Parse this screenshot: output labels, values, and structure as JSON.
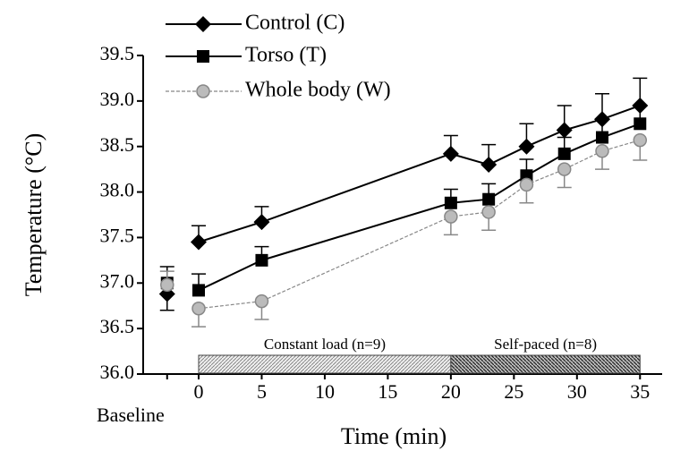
{
  "chart_data": {
    "type": "line",
    "xlabel": "Time (min)",
    "ylabel": "Temperature (°C)",
    "x": [
      0,
      5,
      20,
      23,
      26,
      29,
      32,
      35
    ],
    "baseline_tick": 0,
    "series": [
      {
        "name": "Control (C)",
        "color": "#000000",
        "marker": "diamond",
        "dash": false,
        "error_direction": "up",
        "baseline": 36.88,
        "baseline_error": 0.18,
        "values": [
          37.45,
          37.67,
          38.42,
          38.3,
          38.5,
          38.68,
          38.8,
          38.95
        ],
        "errors": [
          0.18,
          0.17,
          0.2,
          0.22,
          0.25,
          0.27,
          0.28,
          0.3
        ]
      },
      {
        "name": "Torso (T)",
        "color": "#000000",
        "marker": "square",
        "dash": false,
        "error_direction": "up",
        "baseline": 37.0,
        "baseline_error": 0.18,
        "values": [
          36.92,
          37.25,
          37.88,
          37.92,
          38.18,
          38.42,
          38.6,
          38.75
        ],
        "errors": [
          0.18,
          0.15,
          0.15,
          0.17,
          0.18,
          0.18,
          0.2,
          0.2
        ]
      },
      {
        "name": "Whole body (W)",
        "color": "#888888",
        "marker": "circle",
        "dash": true,
        "error_direction": "down",
        "baseline": 36.98,
        "baseline_error": 0.15,
        "values": [
          36.72,
          36.8,
          37.73,
          37.78,
          38.08,
          38.25,
          38.45,
          38.57
        ],
        "errors": [
          0.2,
          0.2,
          0.2,
          0.2,
          0.2,
          0.2,
          0.2,
          0.22
        ]
      }
    ],
    "phases": [
      {
        "label": "Constant load (n=9)",
        "start": 0,
        "end": 20,
        "pattern": "light"
      },
      {
        "label": "Self-paced (n=8)",
        "start": 20,
        "end": 35,
        "pattern": "dark"
      }
    ],
    "xlim": [
      -4.4,
      36.4
    ],
    "ylim": [
      36.0,
      39.5
    ],
    "xticks": [
      {
        "value": -2.5,
        "label": "Baseline"
      },
      0,
      5,
      10,
      15,
      20,
      25,
      30,
      35
    ],
    "yticks": [
      {
        "value": 36.0,
        "label": "36.0"
      },
      36.5,
      {
        "value": 37.0,
        "label": "37.0"
      },
      37.5,
      {
        "value": 38.0,
        "label": "38.0"
      },
      38.5,
      {
        "value": 39.0,
        "label": "39.0"
      },
      39.5
    ],
    "legend": "upper left"
  }
}
